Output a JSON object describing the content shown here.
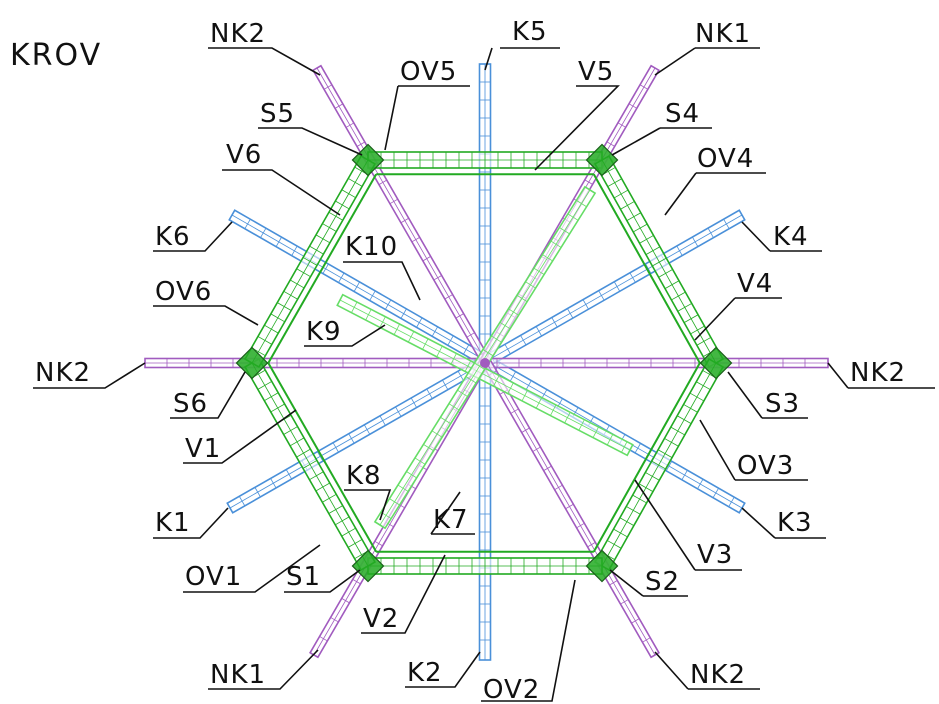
{
  "title": "KROV",
  "colors": {
    "rafter_main": "#a15bbf",
    "rafter_secondary": "#4a90d9",
    "frame": "#22aa22",
    "frame_light": "#66dd66",
    "label": "#111111",
    "background": "#ffffff"
  },
  "labels": {
    "nk2_top_left": "NK2",
    "k5": "K5",
    "nk1_top_right": "NK1",
    "ov5": "OV5",
    "v5": "V5",
    "s5": "S5",
    "s4": "S4",
    "v6": "V6",
    "ov4": "OV4",
    "k6": "K6",
    "k10": "K10",
    "k4": "K4",
    "ov6": "OV6",
    "v4": "V4",
    "k9": "K9",
    "nk2_left": "NK2",
    "nk2_right": "NK2",
    "s6": "S6",
    "s3": "S3",
    "v1": "V1",
    "ov3": "OV3",
    "k8": "K8",
    "k1": "K1",
    "k7": "K7",
    "k3": "K3",
    "v3": "V3",
    "ov1": "OV1",
    "s1": "S1",
    "s2": "S2",
    "v2": "V2",
    "nk1_bottom_left": "NK1",
    "k2": "K2",
    "ov2": "OV2",
    "nk2_bottom_right": "NK2"
  }
}
